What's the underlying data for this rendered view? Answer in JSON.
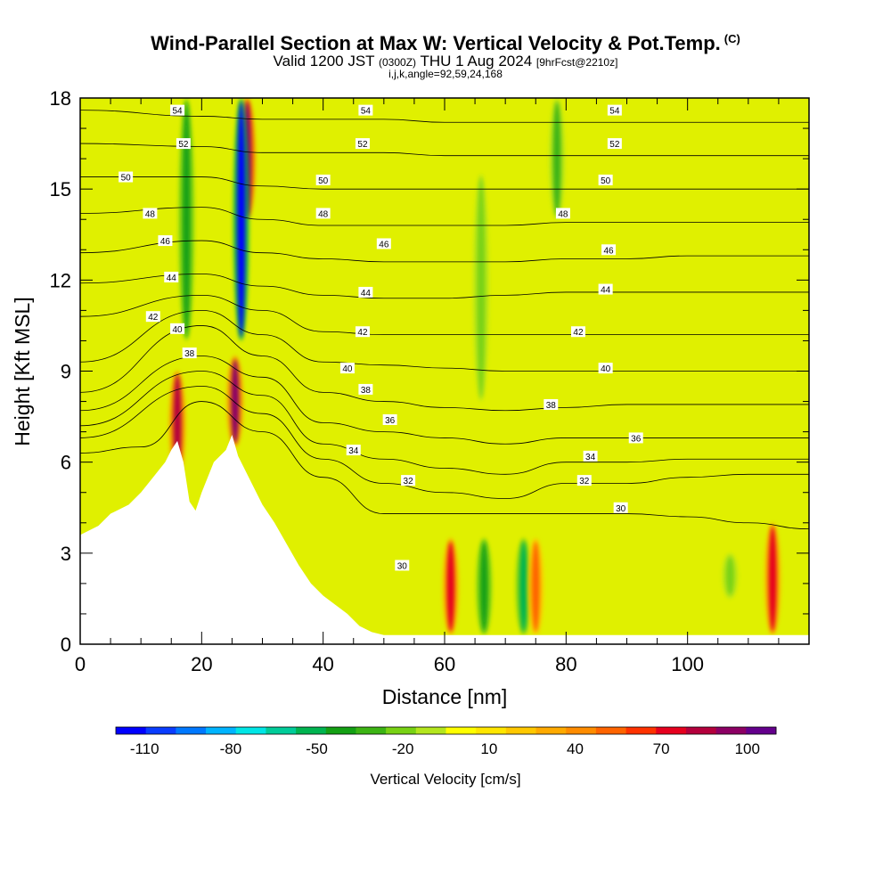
{
  "header": {
    "title": "Wind-Parallel Section at Max W: Vertical Velocity & Pot.Temp.",
    "copyright": "(C)",
    "valid_prefix": "Valid 1200 JST",
    "valid_utc": "(0300Z)",
    "valid_date": "THU 1 Aug 2024",
    "forecast": "[9hrFcst@2210z]",
    "indices": "i,j,k,angle=92,59,24,168"
  },
  "chart_data": {
    "type": "heatmap",
    "xlabel": "Distance [nm]",
    "ylabel": "Height [Kft MSL]",
    "xlim": [
      0,
      120
    ],
    "ylim": [
      0,
      18
    ],
    "x_ticks": [
      0,
      20,
      40,
      60,
      80,
      100
    ],
    "y_ticks": [
      0,
      3,
      6,
      9,
      12,
      15,
      18
    ],
    "colorbar": {
      "label": "Vertical Velocity [cm/s]",
      "tick_labels": [
        "-110",
        "-80",
        "-50",
        "-20",
        "10",
        "40",
        "70",
        "100"
      ],
      "tick_values": [
        -110,
        -80,
        -50,
        -20,
        10,
        40,
        70,
        100
      ],
      "range": [
        -120,
        110
      ],
      "colors": [
        "#0000ff",
        "#0a3cff",
        "#0078ff",
        "#00b4ff",
        "#00e6e6",
        "#00cc99",
        "#00b450",
        "#14a014",
        "#3cb414",
        "#78d214",
        "#b4e61e",
        "#ffff00",
        "#ffe600",
        "#ffc800",
        "#ffaa00",
        "#ff8c00",
        "#ff6400",
        "#ff3200",
        "#e6001e",
        "#b4003c",
        "#8c0064",
        "#64008c"
      ]
    },
    "terrain_profile": [
      {
        "x": 0,
        "h": 3.6
      },
      {
        "x": 3,
        "h": 3.9
      },
      {
        "x": 5,
        "h": 4.3
      },
      {
        "x": 8,
        "h": 4.6
      },
      {
        "x": 10,
        "h": 5.0
      },
      {
        "x": 12,
        "h": 5.5
      },
      {
        "x": 14,
        "h": 6.0
      },
      {
        "x": 15,
        "h": 6.4
      },
      {
        "x": 16,
        "h": 6.7
      },
      {
        "x": 17,
        "h": 6.0
      },
      {
        "x": 18,
        "h": 4.7
      },
      {
        "x": 19,
        "h": 4.4
      },
      {
        "x": 20,
        "h": 5.0
      },
      {
        "x": 22,
        "h": 6.0
      },
      {
        "x": 24,
        "h": 6.4
      },
      {
        "x": 25,
        "h": 6.9
      },
      {
        "x": 26,
        "h": 6.2
      },
      {
        "x": 28,
        "h": 5.4
      },
      {
        "x": 30,
        "h": 4.6
      },
      {
        "x": 32,
        "h": 4.0
      },
      {
        "x": 34,
        "h": 3.3
      },
      {
        "x": 36,
        "h": 2.6
      },
      {
        "x": 38,
        "h": 2.0
      },
      {
        "x": 40,
        "h": 1.6
      },
      {
        "x": 42,
        "h": 1.3
      },
      {
        "x": 44,
        "h": 1.0
      },
      {
        "x": 46,
        "h": 0.6
      },
      {
        "x": 48,
        "h": 0.4
      },
      {
        "x": 50,
        "h": 0.3
      },
      {
        "x": 120,
        "h": 0.3
      }
    ],
    "potential_temperature_contours": [
      {
        "level": 30,
        "profile": [
          [
            0,
            6.3
          ],
          [
            10,
            6.5
          ],
          [
            20,
            8.0
          ],
          [
            30,
            7.0
          ],
          [
            40,
            5.5
          ],
          [
            50,
            4.3
          ],
          [
            60,
            4.3
          ],
          [
            70,
            4.3
          ],
          [
            80,
            4.3
          ],
          [
            90,
            4.3
          ],
          [
            100,
            4.2
          ],
          [
            110,
            4.0
          ],
          [
            120,
            3.8
          ]
        ]
      },
      {
        "level": 32,
        "profile": [
          [
            0,
            6.8
          ],
          [
            20,
            8.5
          ],
          [
            30,
            7.6
          ],
          [
            40,
            6.1
          ],
          [
            50,
            5.3
          ],
          [
            60,
            5.0
          ],
          [
            70,
            4.8
          ],
          [
            80,
            5.3
          ],
          [
            90,
            5.3
          ],
          [
            100,
            5.5
          ],
          [
            110,
            5.6
          ],
          [
            120,
            5.6
          ]
        ]
      },
      {
        "level": 34,
        "profile": [
          [
            0,
            7.2
          ],
          [
            20,
            9.0
          ],
          [
            30,
            8.2
          ],
          [
            40,
            6.6
          ],
          [
            50,
            6.1
          ],
          [
            60,
            5.8
          ],
          [
            70,
            5.6
          ],
          [
            80,
            6.0
          ],
          [
            90,
            6.0
          ],
          [
            100,
            6.1
          ],
          [
            110,
            6.1
          ],
          [
            120,
            6.1
          ]
        ]
      },
      {
        "level": 36,
        "profile": [
          [
            0,
            7.7
          ],
          [
            20,
            9.5
          ],
          [
            30,
            8.8
          ],
          [
            40,
            7.3
          ],
          [
            50,
            7.0
          ],
          [
            60,
            6.8
          ],
          [
            70,
            6.6
          ],
          [
            80,
            6.8
          ],
          [
            90,
            6.8
          ],
          [
            100,
            6.8
          ],
          [
            110,
            6.8
          ],
          [
            120,
            6.8
          ]
        ]
      },
      {
        "level": 38,
        "profile": [
          [
            0,
            8.3
          ],
          [
            20,
            10.5
          ],
          [
            30,
            9.5
          ],
          [
            40,
            8.3
          ],
          [
            50,
            8.0
          ],
          [
            60,
            7.8
          ],
          [
            70,
            7.7
          ],
          [
            80,
            7.8
          ],
          [
            90,
            7.9
          ],
          [
            100,
            7.9
          ],
          [
            110,
            7.9
          ],
          [
            120,
            7.9
          ]
        ]
      },
      {
        "level": 40,
        "profile": [
          [
            0,
            9.3
          ],
          [
            20,
            11.0
          ],
          [
            30,
            10.2
          ],
          [
            40,
            9.3
          ],
          [
            50,
            9.2
          ],
          [
            60,
            9.1
          ],
          [
            70,
            9.0
          ],
          [
            80,
            9.0
          ],
          [
            90,
            9.0
          ],
          [
            100,
            9.0
          ],
          [
            110,
            9.0
          ],
          [
            120,
            9.0
          ]
        ]
      },
      {
        "level": 42,
        "profile": [
          [
            0,
            10.8
          ],
          [
            20,
            11.5
          ],
          [
            30,
            11.0
          ],
          [
            40,
            10.3
          ],
          [
            50,
            10.2
          ],
          [
            60,
            10.2
          ],
          [
            70,
            10.2
          ],
          [
            80,
            10.2
          ],
          [
            90,
            10.2
          ],
          [
            100,
            10.2
          ],
          [
            110,
            10.2
          ],
          [
            120,
            10.2
          ]
        ]
      },
      {
        "level": 44,
        "profile": [
          [
            0,
            11.9
          ],
          [
            20,
            12.2
          ],
          [
            30,
            11.8
          ],
          [
            40,
            11.5
          ],
          [
            50,
            11.4
          ],
          [
            60,
            11.4
          ],
          [
            70,
            11.5
          ],
          [
            80,
            11.6
          ],
          [
            90,
            11.6
          ],
          [
            100,
            11.6
          ],
          [
            110,
            11.6
          ],
          [
            120,
            11.6
          ]
        ]
      },
      {
        "level": 46,
        "profile": [
          [
            0,
            12.9
          ],
          [
            20,
            13.3
          ],
          [
            30,
            12.9
          ],
          [
            40,
            12.7
          ],
          [
            50,
            12.6
          ],
          [
            60,
            12.6
          ],
          [
            70,
            12.6
          ],
          [
            80,
            12.7
          ],
          [
            90,
            12.7
          ],
          [
            100,
            12.8
          ],
          [
            110,
            12.8
          ],
          [
            120,
            12.8
          ]
        ]
      },
      {
        "level": 48,
        "profile": [
          [
            0,
            14.2
          ],
          [
            20,
            14.4
          ],
          [
            30,
            14.0
          ],
          [
            40,
            13.8
          ],
          [
            50,
            13.8
          ],
          [
            60,
            13.8
          ],
          [
            70,
            13.8
          ],
          [
            80,
            13.9
          ],
          [
            90,
            13.9
          ],
          [
            100,
            13.9
          ],
          [
            110,
            13.9
          ],
          [
            120,
            13.9
          ]
        ]
      },
      {
        "level": 50,
        "profile": [
          [
            0,
            15.4
          ],
          [
            20,
            15.4
          ],
          [
            30,
            15.1
          ],
          [
            40,
            15.0
          ],
          [
            50,
            15.0
          ],
          [
            60,
            15.0
          ],
          [
            70,
            15.0
          ],
          [
            80,
            15.0
          ],
          [
            90,
            15.0
          ],
          [
            100,
            15.0
          ],
          [
            110,
            15.0
          ],
          [
            120,
            15.0
          ]
        ]
      },
      {
        "level": 52,
        "profile": [
          [
            0,
            16.5
          ],
          [
            20,
            16.4
          ],
          [
            30,
            16.2
          ],
          [
            40,
            16.2
          ],
          [
            50,
            16.2
          ],
          [
            60,
            16.1
          ],
          [
            70,
            16.1
          ],
          [
            80,
            16.1
          ],
          [
            90,
            16.1
          ],
          [
            100,
            16.1
          ],
          [
            110,
            16.1
          ],
          [
            120,
            16.1
          ]
        ]
      },
      {
        "level": 54,
        "profile": [
          [
            0,
            17.6
          ],
          [
            20,
            17.4
          ],
          [
            30,
            17.3
          ],
          [
            40,
            17.3
          ],
          [
            50,
            17.3
          ],
          [
            60,
            17.2
          ],
          [
            70,
            17.2
          ],
          [
            80,
            17.2
          ],
          [
            90,
            17.2
          ],
          [
            100,
            17.2
          ],
          [
            110,
            17.2
          ],
          [
            120,
            17.2
          ]
        ]
      }
    ],
    "vertical_velocity_features": [
      {
        "x": 16,
        "h0": 5.5,
        "h1": 9.0,
        "value": 85
      },
      {
        "x": 25.5,
        "h0": 6.5,
        "h1": 9.5,
        "value": 90
      },
      {
        "x": 27.5,
        "h0": 14.0,
        "h1": 18.0,
        "value": 95
      },
      {
        "x": 26.5,
        "h0": 10.0,
        "h1": 18.0,
        "value": -110
      },
      {
        "x": 17.5,
        "h0": 10.0,
        "h1": 18.0,
        "value": -45
      },
      {
        "x": 66,
        "h0": 8.0,
        "h1": 15.5,
        "value": -25
      },
      {
        "x": 78.5,
        "h0": 14.0,
        "h1": 18.0,
        "value": -30
      },
      {
        "x": 61,
        "h0": 0.3,
        "h1": 3.5,
        "value": 70
      },
      {
        "x": 66.5,
        "h0": 0.3,
        "h1": 3.5,
        "value": -40
      },
      {
        "x": 73,
        "h0": 0.3,
        "h1": 3.5,
        "value": -50
      },
      {
        "x": 75,
        "h0": 0.3,
        "h1": 3.5,
        "value": 50
      },
      {
        "x": 114,
        "h0": 0.3,
        "h1": 4.0,
        "value": 70
      },
      {
        "x": 107,
        "h0": 1.5,
        "h1": 3.0,
        "value": -20
      }
    ],
    "contour_labels": [
      {
        "text": "54",
        "x": 16,
        "h": 17.6
      },
      {
        "text": "52",
        "x": 17,
        "h": 16.5
      },
      {
        "text": "50",
        "x": 7.5,
        "h": 15.4
      },
      {
        "text": "48",
        "x": 11.5,
        "h": 14.2
      },
      {
        "text": "46",
        "x": 14,
        "h": 13.3
      },
      {
        "text": "44",
        "x": 15,
        "h": 12.1
      },
      {
        "text": "42",
        "x": 12,
        "h": 10.8
      },
      {
        "text": "40",
        "x": 16,
        "h": 10.4
      },
      {
        "text": "38",
        "x": 18,
        "h": 9.6
      },
      {
        "text": "54",
        "x": 47,
        "h": 17.6
      },
      {
        "text": "52",
        "x": 46.5,
        "h": 16.5
      },
      {
        "text": "50",
        "x": 40,
        "h": 15.3
      },
      {
        "text": "48",
        "x": 40,
        "h": 14.2
      },
      {
        "text": "46",
        "x": 50,
        "h": 13.2
      },
      {
        "text": "44",
        "x": 47,
        "h": 11.6
      },
      {
        "text": "42",
        "x": 46.5,
        "h": 10.3
      },
      {
        "text": "40",
        "x": 44,
        "h": 9.1
      },
      {
        "text": "38",
        "x": 47,
        "h": 8.4
      },
      {
        "text": "36",
        "x": 51,
        "h": 7.4
      },
      {
        "text": "34",
        "x": 45,
        "h": 6.4
      },
      {
        "text": "32",
        "x": 54,
        "h": 5.4
      },
      {
        "text": "30",
        "x": 53,
        "h": 2.6
      },
      {
        "text": "54",
        "x": 88,
        "h": 17.6
      },
      {
        "text": "52",
        "x": 88,
        "h": 16.5
      },
      {
        "text": "50",
        "x": 86.5,
        "h": 15.3
      },
      {
        "text": "48",
        "x": 79.5,
        "h": 14.2
      },
      {
        "text": "46",
        "x": 87,
        "h": 13.0
      },
      {
        "text": "44",
        "x": 86.5,
        "h": 11.7
      },
      {
        "text": "42",
        "x": 82,
        "h": 10.3
      },
      {
        "text": "40",
        "x": 86.5,
        "h": 9.1
      },
      {
        "text": "38",
        "x": 77.5,
        "h": 7.9
      },
      {
        "text": "36",
        "x": 91.5,
        "h": 6.8
      },
      {
        "text": "34",
        "x": 84,
        "h": 6.2
      },
      {
        "text": "32",
        "x": 83,
        "h": 5.4
      },
      {
        "text": "30",
        "x": 89,
        "h": 4.5
      }
    ]
  }
}
